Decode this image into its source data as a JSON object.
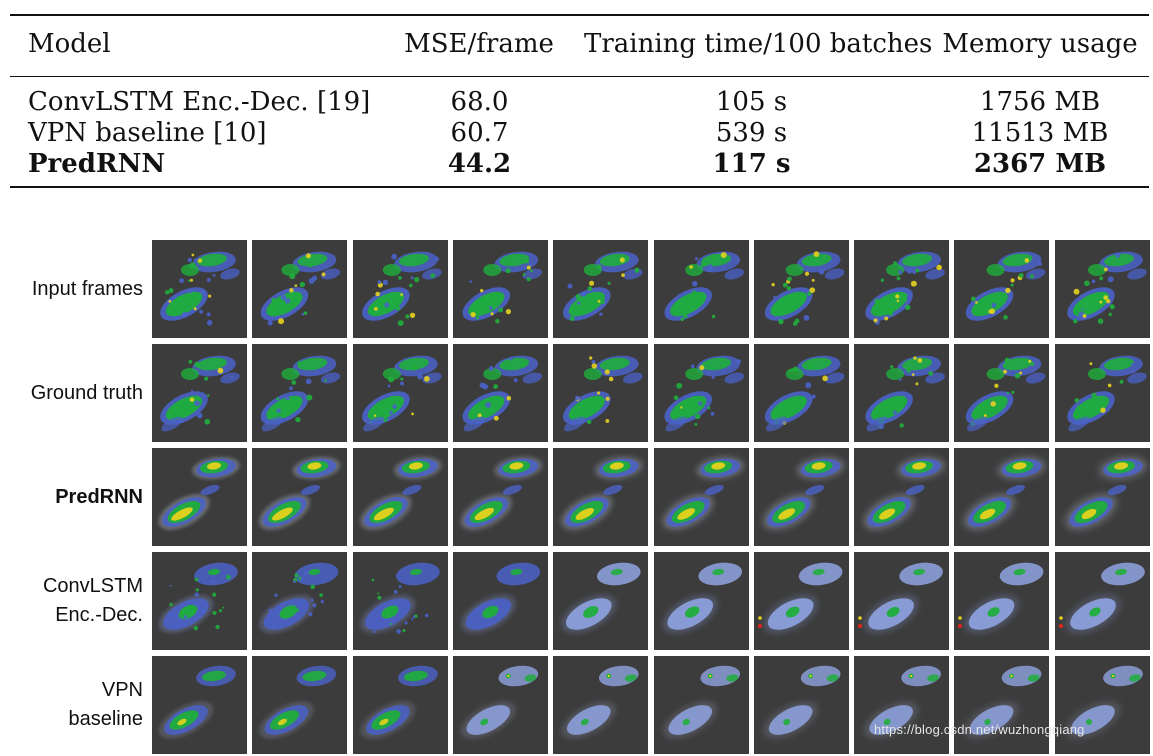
{
  "table": {
    "headers": [
      "Model",
      "MSE/frame",
      "Training time/100 batches",
      "Memory usage"
    ],
    "rows": [
      {
        "model": "ConvLSTM Enc.-Dec. [19]",
        "mse": "68.0",
        "time": "105 s",
        "memory": "1756 MB",
        "bold": false
      },
      {
        "model": "VPN baseline [10]",
        "mse": "60.7",
        "time": "539 s",
        "memory": "11513 MB",
        "bold": false
      },
      {
        "model": "PredRNN",
        "mse": "44.2",
        "time": "117 s",
        "memory": "2367 MB",
        "bold": true
      }
    ]
  },
  "figure": {
    "frames_per_row": 10,
    "colors": {
      "background": "#3c3c3c",
      "blue": "#4a62c8",
      "pale_blue": "#8fa3e0",
      "green": "#1fae3b",
      "yellow": "#e6d21c",
      "red": "#d4261f"
    },
    "rows": [
      {
        "name": "input-frames",
        "label_lines": [
          "Input frames"
        ],
        "bold": false,
        "style": "input"
      },
      {
        "name": "ground-truth",
        "label_lines": [
          "Ground truth"
        ],
        "bold": false,
        "style": "truth"
      },
      {
        "name": "predrnn",
        "label_lines": [
          "PredRNN"
        ],
        "bold": true,
        "style": "predrnn"
      },
      {
        "name": "convlstm",
        "label_lines": [
          "ConvLSTM",
          "Enc.-Dec."
        ],
        "bold": false,
        "style": "convlstm"
      },
      {
        "name": "vpn",
        "label_lines": [
          "VPN",
          "baseline"
        ],
        "bold": false,
        "style": "vpn"
      }
    ]
  },
  "watermark": "https://blog.csdn.net/wuzhongqiang"
}
